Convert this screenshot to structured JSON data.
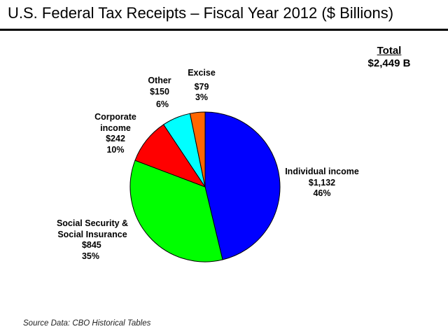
{
  "chart_data": {
    "type": "pie",
    "title": "U.S. Federal Tax Receipts – Fiscal Year 2012 ($ Billions)",
    "total": {
      "heading": "Total",
      "value": "$2,449 B"
    },
    "source": "Source Data: CBO Historical Tables",
    "slices": [
      {
        "name_lines": [
          "Individual income"
        ],
        "value": 1132,
        "value_label": "$1,132",
        "pct_label": "46%",
        "color": "#0000FF"
      },
      {
        "name_lines": [
          "Social Security &",
          "Social Insurance"
        ],
        "value": 845,
        "value_label": "$845",
        "pct_label": "35%",
        "color": "#00FF00"
      },
      {
        "name_lines": [
          "Corporate",
          "income"
        ],
        "value": 242,
        "value_label": "$242",
        "pct_label": "10%",
        "color": "#FF0000"
      },
      {
        "name_lines": [
          "Other"
        ],
        "value": 150,
        "value_label": "$150",
        "pct_label": "6%",
        "color": "#00FFFF"
      },
      {
        "name_lines": [
          "Excise"
        ],
        "value": 79,
        "value_label": "$79",
        "pct_label": "3%",
        "color": "#FF6600"
      }
    ],
    "start_angle": "12 o'clock",
    "direction": "clockwise"
  }
}
